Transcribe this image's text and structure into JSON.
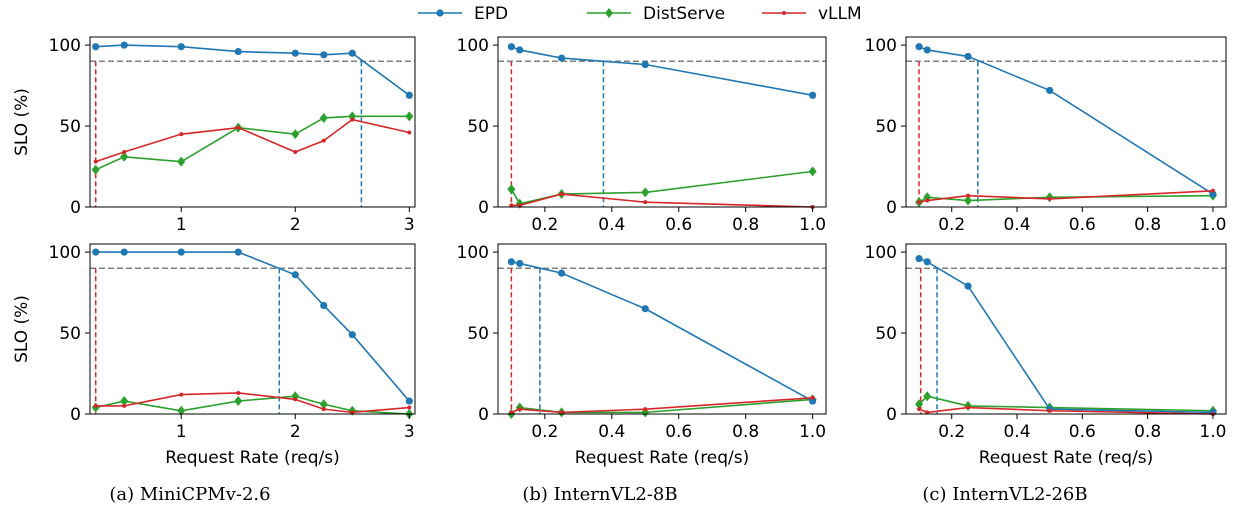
{
  "legend": [
    {
      "name": "EPD",
      "color": "#1f77b4",
      "marker": "circle"
    },
    {
      "name": "DistServe",
      "color": "#2ca02c",
      "marker": "diamond"
    },
    {
      "name": "vLLM",
      "color": "#d62728",
      "marker": "dot"
    }
  ],
  "ylabel": "SLO (%)",
  "xlabel": "Request Rate (req/s)",
  "captions": [
    "(a) MiniCPMv-2.6",
    "(b) InternVL2-8B",
    "(c) InternVL2-26B"
  ],
  "slo_threshold": 90,
  "colors": {
    "EPD": "#1f77b4",
    "DistServe": "#2ca02c",
    "vLLM": "#d62728",
    "threshold": "#808080"
  },
  "chart_data": [
    {
      "type": "line",
      "row": 0,
      "col": 0,
      "xlim": [
        0.2,
        3.05
      ],
      "ylim": [
        0,
        105
      ],
      "xticks": [
        1,
        2,
        3
      ],
      "xtick_labels": [
        "1",
        "2",
        "3"
      ],
      "yticks": [
        0,
        50,
        100
      ],
      "ytick_labels": [
        "0",
        "50",
        "100"
      ],
      "series": [
        {
          "name": "EPD",
          "x": [
            0.25,
            0.5,
            1,
            1.5,
            2,
            2.25,
            2.5,
            3
          ],
          "y": [
            99,
            100,
            99,
            96,
            95,
            94,
            95,
            69
          ]
        },
        {
          "name": "DistServe",
          "x": [
            0.25,
            0.5,
            1,
            1.5,
            2,
            2.25,
            2.5,
            3
          ],
          "y": [
            23,
            31,
            28,
            49,
            45,
            55,
            56,
            56
          ]
        },
        {
          "name": "vLLM",
          "x": [
            0.25,
            0.5,
            1,
            1.5,
            2,
            2.25,
            2.5,
            3
          ],
          "y": [
            28,
            34,
            45,
            49,
            34,
            41,
            54,
            46
          ]
        }
      ],
      "vlines": [
        {
          "series": "vLLM",
          "x": 0.25
        },
        {
          "series": "EPD",
          "x": 2.58
        }
      ]
    },
    {
      "type": "line",
      "row": 0,
      "col": 1,
      "xlim": [
        0.06,
        1.04
      ],
      "ylim": [
        0,
        105
      ],
      "xticks": [
        0.2,
        0.4,
        0.6,
        0.8,
        1.0
      ],
      "xtick_labels": [
        "0.2",
        "0.4",
        "0.6",
        "0.8",
        "1.0"
      ],
      "yticks": [
        0,
        50,
        100
      ],
      "ytick_labels": [
        "0",
        "50",
        "100"
      ],
      "series": [
        {
          "name": "EPD",
          "x": [
            0.1,
            0.125,
            0.25,
            0.5,
            1.0
          ],
          "y": [
            99,
            97,
            92,
            88,
            69
          ]
        },
        {
          "name": "DistServe",
          "x": [
            0.1,
            0.125,
            0.25,
            0.5,
            1.0
          ],
          "y": [
            11,
            2,
            8,
            9,
            22
          ]
        },
        {
          "name": "vLLM",
          "x": [
            0.1,
            0.125,
            0.25,
            0.5,
            1.0
          ],
          "y": [
            1,
            1,
            8,
            3,
            0
          ]
        }
      ],
      "vlines": [
        {
          "series": "vLLM",
          "x": 0.1
        },
        {
          "series": "EPD",
          "x": 0.375
        }
      ]
    },
    {
      "type": "line",
      "row": 0,
      "col": 2,
      "xlim": [
        0.06,
        1.04
      ],
      "ylim": [
        0,
        105
      ],
      "xticks": [
        0.2,
        0.4,
        0.6,
        0.8,
        1.0
      ],
      "xtick_labels": [
        "0.2",
        "0.4",
        "0.6",
        "0.8",
        "1.0"
      ],
      "yticks": [
        0,
        50,
        100
      ],
      "ytick_labels": [
        "0",
        "50",
        "100"
      ],
      "series": [
        {
          "name": "EPD",
          "x": [
            0.1,
            0.125,
            0.25,
            0.5,
            1.0
          ],
          "y": [
            99,
            97,
            93,
            72,
            8
          ]
        },
        {
          "name": "DistServe",
          "x": [
            0.1,
            0.125,
            0.25,
            0.5,
            1.0
          ],
          "y": [
            3,
            6,
            4,
            6,
            7
          ]
        },
        {
          "name": "vLLM",
          "x": [
            0.1,
            0.125,
            0.25,
            0.5,
            1.0
          ],
          "y": [
            3,
            4,
            7,
            5,
            10
          ]
        }
      ],
      "vlines": [
        {
          "series": "vLLM",
          "x": 0.1
        },
        {
          "series": "EPD",
          "x": 0.28
        }
      ]
    },
    {
      "type": "line",
      "row": 1,
      "col": 0,
      "xlim": [
        0.2,
        3.05
      ],
      "ylim": [
        0,
        105
      ],
      "xticks": [
        1,
        2,
        3
      ],
      "xtick_labels": [
        "1",
        "2",
        "3"
      ],
      "yticks": [
        0,
        50,
        100
      ],
      "ytick_labels": [
        "0",
        "50",
        "100"
      ],
      "series": [
        {
          "name": "EPD",
          "x": [
            0.25,
            0.5,
            1,
            1.5,
            2,
            2.25,
            2.5,
            3
          ],
          "y": [
            100,
            100,
            100,
            100,
            86,
            67,
            49,
            8
          ]
        },
        {
          "name": "DistServe",
          "x": [
            0.25,
            0.5,
            1,
            1.5,
            2,
            2.25,
            2.5,
            3
          ],
          "y": [
            4,
            8,
            2,
            8,
            11,
            6,
            2,
            0
          ]
        },
        {
          "name": "vLLM",
          "x": [
            0.25,
            0.5,
            1,
            1.5,
            2,
            2.25,
            2.5,
            3
          ],
          "y": [
            5,
            5,
            12,
            13,
            9,
            3,
            1,
            4
          ]
        }
      ],
      "vlines": [
        {
          "series": "vLLM",
          "x": 0.25
        },
        {
          "series": "EPD",
          "x": 1.86
        }
      ]
    },
    {
      "type": "line",
      "row": 1,
      "col": 1,
      "xlim": [
        0.06,
        1.04
      ],
      "ylim": [
        0,
        105
      ],
      "xticks": [
        0.2,
        0.4,
        0.6,
        0.8,
        1.0
      ],
      "xtick_labels": [
        "0.2",
        "0.4",
        "0.6",
        "0.8",
        "1.0"
      ],
      "yticks": [
        0,
        50,
        100
      ],
      "ytick_labels": [
        "0",
        "50",
        "100"
      ],
      "series": [
        {
          "name": "EPD",
          "x": [
            0.1,
            0.125,
            0.25,
            0.5,
            1.0
          ],
          "y": [
            94,
            93,
            87,
            65,
            8
          ]
        },
        {
          "name": "DistServe",
          "x": [
            0.1,
            0.125,
            0.25,
            0.5,
            1.0
          ],
          "y": [
            0,
            4,
            1,
            1,
            9
          ]
        },
        {
          "name": "vLLM",
          "x": [
            0.1,
            0.125,
            0.25,
            0.5,
            1.0
          ],
          "y": [
            1,
            3,
            1,
            3,
            10
          ]
        }
      ],
      "vlines": [
        {
          "series": "vLLM",
          "x": 0.1
        },
        {
          "series": "EPD",
          "x": 0.185
        }
      ]
    },
    {
      "type": "line",
      "row": 1,
      "col": 2,
      "xlim": [
        0.06,
        1.04
      ],
      "ylim": [
        0,
        105
      ],
      "xticks": [
        0.2,
        0.4,
        0.6,
        0.8,
        1.0
      ],
      "xtick_labels": [
        "0.2",
        "0.4",
        "0.6",
        "0.8",
        "1.0"
      ],
      "yticks": [
        0,
        50,
        100
      ],
      "ytick_labels": [
        "0",
        "50",
        "100"
      ],
      "series": [
        {
          "name": "EPD",
          "x": [
            0.1,
            0.125,
            0.25,
            0.5,
            1.0
          ],
          "y": [
            96,
            94,
            79,
            3,
            1
          ]
        },
        {
          "name": "DistServe",
          "x": [
            0.1,
            0.125,
            0.25,
            0.5,
            1.0
          ],
          "y": [
            6,
            11,
            5,
            4,
            2
          ]
        },
        {
          "name": "vLLM",
          "x": [
            0.1,
            0.125,
            0.25,
            0.5,
            1.0
          ],
          "y": [
            3,
            1,
            4,
            2,
            0
          ]
        }
      ],
      "vlines": [
        {
          "series": "vLLM",
          "x": 0.105
        },
        {
          "series": "EPD",
          "x": 0.155
        }
      ]
    }
  ]
}
